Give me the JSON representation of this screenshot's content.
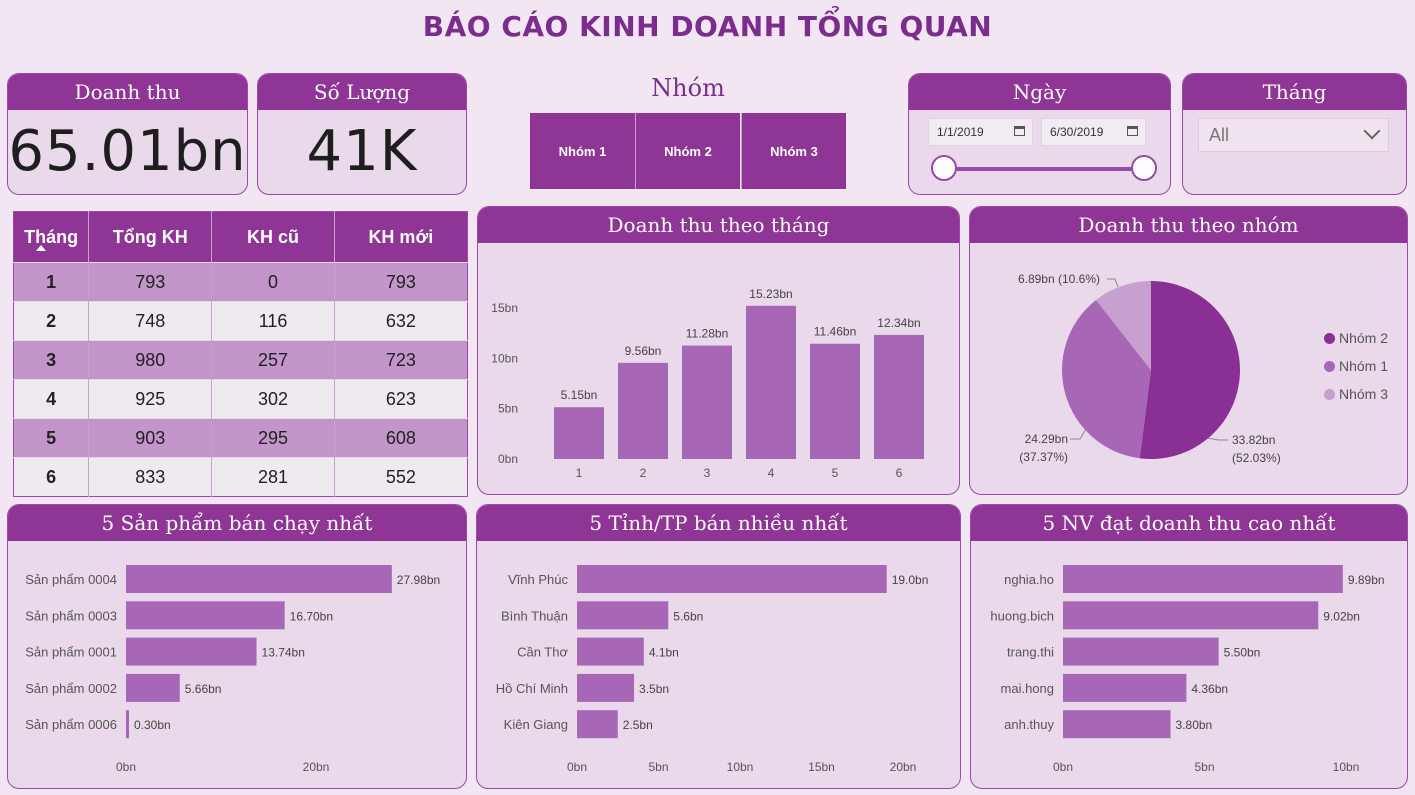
{
  "title": "BÁO CÁO KINH DOANH TỔNG QUAN",
  "kpi": {
    "revenue": {
      "label": "Doanh thu",
      "value": "65.01bn"
    },
    "quantity": {
      "label": "Số Lượng",
      "value": "41K"
    }
  },
  "group_filter": {
    "title": "Nhóm",
    "buttons": [
      "Nhóm 1",
      "Nhóm 2",
      "Nhóm 3"
    ]
  },
  "date_filter": {
    "title": "Ngày",
    "start": "1/1/2019",
    "end": "6/30/2019"
  },
  "month_filter": {
    "title": "Tháng",
    "selected": "All"
  },
  "customer_table": {
    "headers": [
      "Tháng",
      "Tổng KH",
      "KH cũ",
      "KH mới"
    ],
    "rows": [
      [
        "1",
        "793",
        "0",
        "793"
      ],
      [
        "2",
        "748",
        "116",
        "632"
      ],
      [
        "3",
        "980",
        "257",
        "723"
      ],
      [
        "4",
        "925",
        "302",
        "623"
      ],
      [
        "5",
        "903",
        "295",
        "608"
      ],
      [
        "6",
        "833",
        "281",
        "552"
      ]
    ]
  },
  "colors": {
    "accent": "#8e3596",
    "bar": "#a867b6",
    "pie": [
      "#8a2f94",
      "#a867b6",
      "#c7a0cf"
    ],
    "background": "#f1e6f1",
    "card": "#ead9ea"
  },
  "chart_data": [
    {
      "id": "monthly",
      "type": "bar",
      "title": "Doanh thu theo tháng",
      "categories": [
        "1",
        "2",
        "3",
        "4",
        "5",
        "6"
      ],
      "values": [
        5.15,
        9.56,
        11.28,
        15.23,
        11.46,
        12.34
      ],
      "value_labels": [
        "5.15bn",
        "9.56bn",
        "11.28bn",
        "15.23bn",
        "11.46bn",
        "12.34bn"
      ],
      "yticks": [
        0,
        5,
        10,
        15
      ],
      "ytick_labels": [
        "0bn",
        "5bn",
        "10bn",
        "15bn"
      ],
      "ylim": [
        0,
        17.5
      ]
    },
    {
      "id": "group",
      "type": "pie",
      "title": "Doanh thu theo nhóm",
      "labels": [
        "Nhóm 2",
        "Nhóm 1",
        "Nhóm 3"
      ],
      "values": [
        33.82,
        24.29,
        6.89
      ],
      "percents": [
        52.03,
        37.37,
        10.6
      ],
      "value_labels": [
        [
          "33.82bn",
          "(52.03%)"
        ],
        [
          "24.29bn",
          "(37.37%)"
        ],
        [
          "6.89bn (10.6%)"
        ]
      ],
      "legend": "right"
    },
    {
      "id": "products",
      "type": "bar",
      "orientation": "horizontal",
      "title": "5 Sản phẩm bán chạy nhất",
      "categories": [
        "Sản phẩm 0004",
        "Sản phẩm 0003",
        "Sản phẩm 0001",
        "Sản phẩm 0002",
        "Sản phẩm 0006"
      ],
      "values": [
        27.98,
        16.7,
        13.74,
        5.66,
        0.3
      ],
      "value_labels": [
        "27.98bn",
        "16.70bn",
        "13.74bn",
        "5.66bn",
        "0.30bn"
      ],
      "xticks": [
        0,
        20
      ],
      "xtick_labels": [
        "0bn",
        "20bn"
      ],
      "xlim": [
        0,
        28
      ]
    },
    {
      "id": "provinces",
      "type": "bar",
      "orientation": "horizontal",
      "title": "5 Tỉnh/TP bán nhiều nhất",
      "categories": [
        "Vĩnh Phúc",
        "Bình Thuận",
        "Cần Thơ",
        "Hồ Chí Minh",
        "Kiên Giang"
      ],
      "values": [
        19.0,
        5.6,
        4.1,
        3.5,
        2.5
      ],
      "value_labels": [
        "19.0bn",
        "5.6bn",
        "4.1bn",
        "3.5bn",
        "2.5bn"
      ],
      "xticks": [
        0,
        5,
        10,
        15,
        20
      ],
      "xtick_labels": [
        "0bn",
        "5bn",
        "10bn",
        "15bn",
        "20bn"
      ],
      "xlim": [
        0,
        20
      ]
    },
    {
      "id": "staff",
      "type": "bar",
      "orientation": "horizontal",
      "title": "5 NV đạt doanh thu cao nhất",
      "categories": [
        "nghia.ho",
        "huong.bich",
        "trang.thi",
        "mai.hong",
        "anh.thuy"
      ],
      "values": [
        9.89,
        9.02,
        5.5,
        4.36,
        3.8
      ],
      "value_labels": [
        "9.89bn",
        "9.02bn",
        "5.50bn",
        "4.36bn",
        "3.80bn"
      ],
      "xticks": [
        0,
        5,
        10
      ],
      "xtick_labels": [
        "0bn",
        "5bn",
        "10bn"
      ],
      "xlim": [
        0,
        10
      ]
    }
  ]
}
